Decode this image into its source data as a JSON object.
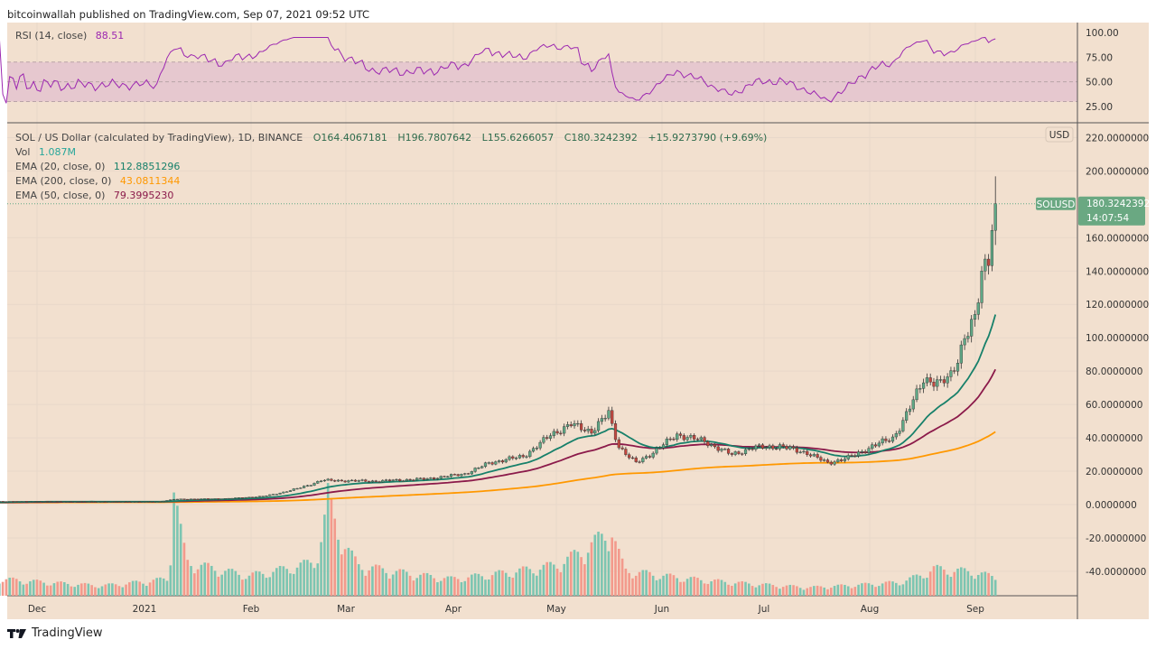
{
  "header": {
    "published": "bitcoinwallah published on TradingView.com, Sep 07, 2021 09:52 UTC"
  },
  "rsi_legend": {
    "label": "RSI (14, close)",
    "value": "88.51"
  },
  "main_legend": {
    "symbol": "SOL / US Dollar (calculated by TradingView), 1D, BINANCE",
    "open": "O164.4067181",
    "high": "H196.7807642",
    "low": "L155.6266057",
    "close": "C180.3242392",
    "change": "+15.9273790 (+9.69%)",
    "vol_label": "Vol",
    "vol_value": "1.087M",
    "ema20_label": "EMA (20, close, 0)",
    "ema20_value": "112.8851296",
    "ema200_label": "EMA (200, close, 0)",
    "ema200_value": "43.0811344",
    "ema50_label": "EMA (50, close, 0)",
    "ema50_value": "79.3995230"
  },
  "price_tag": {
    "symbol": "SOLUSD",
    "price": "180.3242392",
    "countdown": "14:07:54"
  },
  "currency_badge": "USD",
  "footer": {
    "logo_text": "TradingView"
  },
  "colors": {
    "bg": "#f2e0cf",
    "up": "#5fa886",
    "down": "#c2473f",
    "ema20": "#17806a",
    "ema50": "#8b1a4a",
    "ema200": "#ff9800",
    "rsi": "#9c27b0",
    "vol_up": "#7cc5b1",
    "vol_down": "#f39a8c"
  },
  "chart_data": {
    "type": "candlestick",
    "title": "SOL / US Dollar, 1D, BINANCE",
    "last_candle": {
      "date": "2021-09-07",
      "open": 164.4067181,
      "high": 196.7807642,
      "low": 155.6266057,
      "close": 180.3242392
    },
    "close_keypoints": {
      "dates": [
        "2020-11-20",
        "2020-12-10",
        "2021-01-05",
        "2021-01-10",
        "2021-01-25",
        "2021-02-05",
        "2021-02-12",
        "2021-02-22",
        "2021-03-10",
        "2021-03-25",
        "2021-04-05",
        "2021-04-12",
        "2021-04-22",
        "2021-04-30",
        "2021-05-06",
        "2021-05-12",
        "2021-05-17",
        "2021-05-20",
        "2021-05-25",
        "2021-06-02",
        "2021-06-06",
        "2021-06-14",
        "2021-06-22",
        "2021-06-28",
        "2021-07-06",
        "2021-07-14",
        "2021-07-20",
        "2021-07-26",
        "2021-08-02",
        "2021-08-08",
        "2021-08-13",
        "2021-08-17",
        "2021-08-22",
        "2021-08-25",
        "2021-08-29",
        "2021-09-01",
        "2021-09-03",
        "2021-09-05",
        "2021-09-06",
        "2021-09-07"
      ],
      "close": [
        1.9,
        1.8,
        1.7,
        3.2,
        3.6,
        5.0,
        8.0,
        14.5,
        14.0,
        15.5,
        18.5,
        25.0,
        29.0,
        42.0,
        48.0,
        44.0,
        55.0,
        35.0,
        25.0,
        36.0,
        42.0,
        38.0,
        30.0,
        34.0,
        35.0,
        31.0,
        25.0,
        28.0,
        35.0,
        40.0,
        58.0,
        76.0,
        72.0,
        78.0,
        100.0,
        110.0,
        140.0,
        150.0,
        164.4,
        180.3
      ]
    },
    "volume_keypoints_M": {
      "dates": [
        "2020-11-20",
        "2020-12-20",
        "2021-01-08",
        "2021-01-10",
        "2021-01-14",
        "2021-02-01",
        "2021-02-20",
        "2021-02-24",
        "2021-03-05",
        "2021-04-01",
        "2021-05-01",
        "2021-05-18",
        "2021-05-22",
        "2021-06-10",
        "2021-07-15",
        "2021-08-10",
        "2021-08-20",
        "2021-09-01",
        "2021-09-07"
      ],
      "values": [
        1.0,
        0.6,
        1.0,
        7.0,
        2.0,
        1.2,
        2.0,
        5.8,
        1.8,
        1.0,
        1.8,
        4.0,
        1.5,
        1.0,
        0.5,
        0.8,
        1.6,
        1.4,
        1.09
      ]
    },
    "price_axis": {
      "ticks": [
        "220.0000000",
        "200.0000000",
        "160.0000000",
        "140.0000000",
        "120.0000000",
        "100.0000000",
        "80.0000000",
        "60.0000000",
        "40.0000000",
        "20.0000000",
        "0.0000000",
        "-20.0000000",
        "-40.0000000"
      ],
      "range": [
        -50,
        225
      ]
    },
    "rsi_axis": {
      "ticks": [
        "100.00",
        "75.00",
        "50.00",
        "25.00"
      ],
      "band": [
        30,
        70
      ]
    },
    "x_axis": {
      "labels": [
        "Dec",
        "2021",
        "Feb",
        "Mar",
        "Apr",
        "May",
        "Jun",
        "Jul",
        "Aug",
        "Sep"
      ]
    }
  }
}
